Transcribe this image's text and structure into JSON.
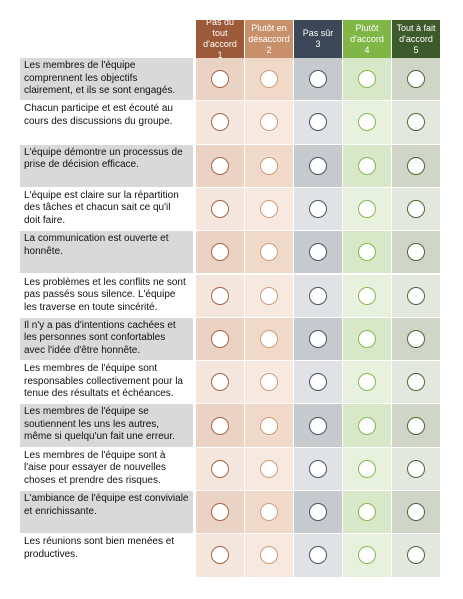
{
  "table": {
    "columns": [
      {
        "label": "Pas du tout d'accord",
        "number": "1"
      },
      {
        "label": "Plutôt en désaccord",
        "number": "2"
      },
      {
        "label": "Pas sûr",
        "number": "3"
      },
      {
        "label": "Plutôt d'accord",
        "number": "4"
      },
      {
        "label": "Tout à fait d'accord",
        "number": "5"
      }
    ],
    "rows": [
      "Les membres de l'équipe comprennent les objectifs clairement, et ils se sont engagés.",
      "Chacun participe et est écouté au cours des discussions du groupe.",
      "L'équipe démontre un processus de prise de décision efficace.",
      "L'équipe est claire sur la répartition des tâches et chacun sait ce qu'il doit faire.",
      "La communication est ouverte et honnête.",
      "Les problèmes et les conflits ne sont pas passés sous silence. L'équipe les traverse  en toute sincérité.",
      "Il n'y a pas d'intentions cachées et les personnes sont confortables avec l'idée d'être honnête.",
      "Les membres de l'équipe sont responsables collectivement pour la tenue des résultats et échéances.",
      "Les membres de l'équipe se soutiennent les uns les autres, même si quelqu'un fait une erreur.",
      "Les membres de l'équipe sont à l'aise pour essayer de nouvelles choses et prendre des risques.",
      "L'ambiance de l'équipe est conviviale et enrichissante.",
      "Les réunions sont bien menées et productives."
    ]
  }
}
